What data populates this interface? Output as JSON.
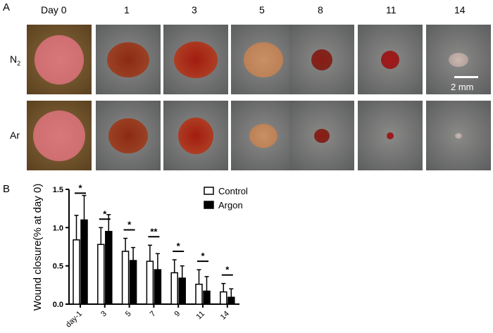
{
  "panel_a": {
    "label": "A",
    "columns": [
      "Day 0",
      "1",
      "3",
      "5",
      "8",
      "11",
      "14"
    ],
    "rows": [
      {
        "label": "N",
        "sub": "2"
      },
      {
        "label": "Ar",
        "sub": ""
      }
    ],
    "scale_bar": "2 mm"
  },
  "chart_data": {
    "panel_label": "B",
    "type": "bar",
    "ylabel": "Wound closure(% at day 0)",
    "xlabel": "",
    "ylim": [
      0,
      1.5
    ],
    "yticks": [
      "0.0",
      "0.5",
      "1.0",
      "1.5"
    ],
    "categories": [
      "day-1",
      "3",
      "5",
      "7",
      "9",
      "11",
      "14"
    ],
    "series": [
      {
        "name": "Control",
        "values": [
          0.84,
          0.78,
          0.69,
          0.56,
          0.41,
          0.26,
          0.16
        ],
        "error_upper": [
          1.16,
          1.0,
          0.86,
          0.77,
          0.58,
          0.45,
          0.27
        ],
        "fill": "#ffffff"
      },
      {
        "name": "Argon",
        "values": [
          1.1,
          0.95,
          0.57,
          0.45,
          0.34,
          0.17,
          0.09
        ],
        "error_upper": [
          1.42,
          1.17,
          0.74,
          0.66,
          0.5,
          0.36,
          0.2
        ],
        "fill": "#000000"
      }
    ],
    "significance": [
      "*",
      "*",
      "*",
      "**",
      "*",
      "*",
      "*"
    ],
    "legend": "top-right",
    "grid": false
  }
}
